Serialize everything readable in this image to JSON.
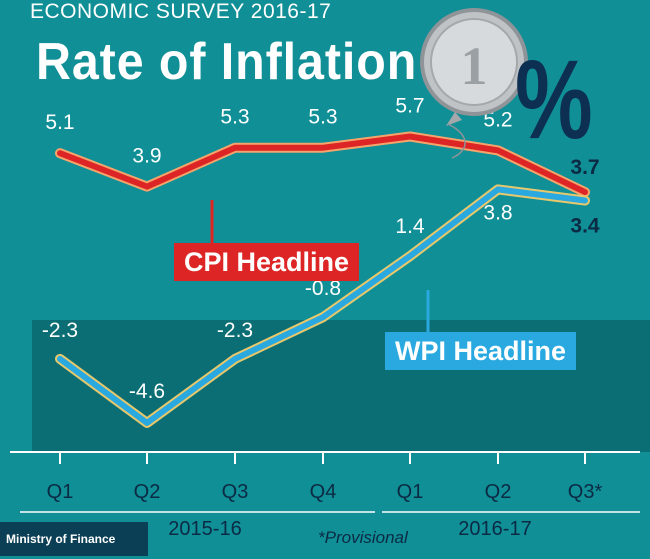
{
  "header": {
    "survey_label": "ECONOMIC SURVEY 2016-17",
    "title": "Rate of Inflation",
    "unit_symbol": "%"
  },
  "footer": {
    "source": "Ministry of Finance",
    "note": "*Provisional"
  },
  "colors": {
    "background": "#108f96",
    "cpi": "#dd2525",
    "wpi": "#2aa9e0",
    "lower_band": "#0b6e74",
    "text_dark": "#0b2a44"
  },
  "icons": [
    "rupee-coin-balloon-icon"
  ],
  "chart_data": {
    "type": "line",
    "title": "Rate of Inflation",
    "categories": [
      "Q1",
      "Q2",
      "Q3",
      "Q4",
      "Q1",
      "Q2",
      "Q3*"
    ],
    "groups": [
      {
        "label": "2015-16",
        "from": 0,
        "to": 3
      },
      {
        "label": "2016-17",
        "from": 4,
        "to": 6
      }
    ],
    "series": [
      {
        "name": "CPI Headline",
        "values": [
          5.1,
          3.9,
          5.3,
          5.3,
          5.7,
          5.2,
          3.7
        ]
      },
      {
        "name": "WPI Headline",
        "values": [
          -2.3,
          -4.6,
          -2.3,
          -0.8,
          1.4,
          3.8,
          3.4
        ]
      }
    ],
    "xlabel": "",
    "ylabel": "",
    "grid": false,
    "legend": "inline labels"
  }
}
